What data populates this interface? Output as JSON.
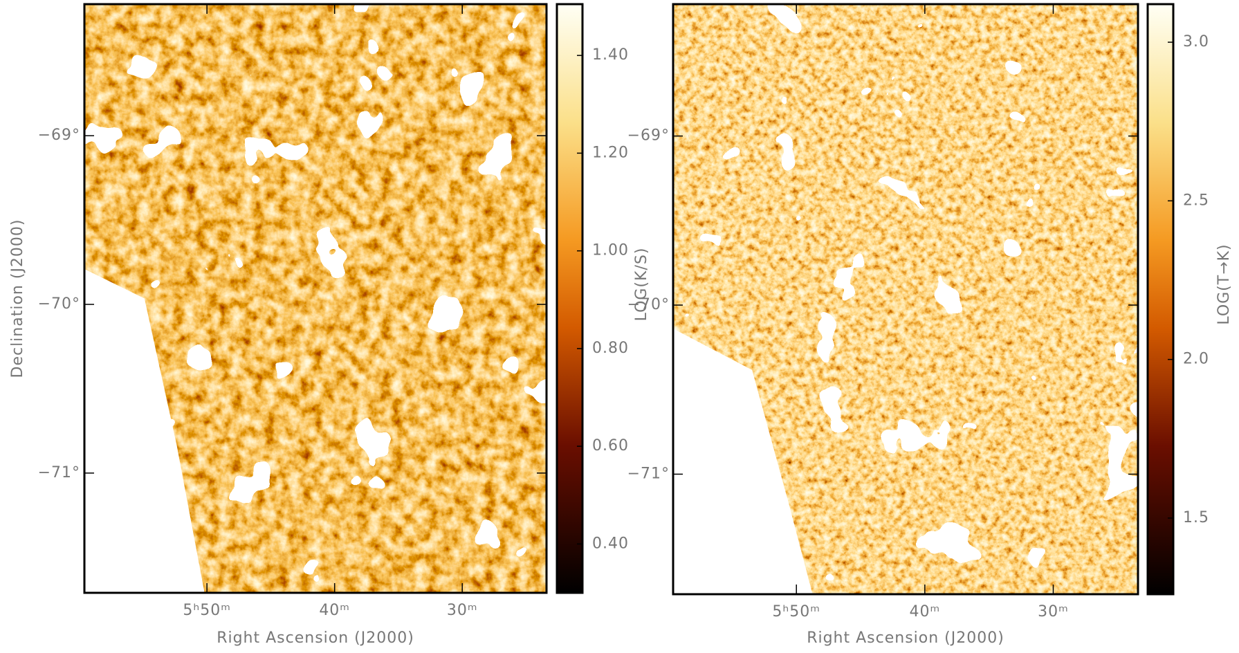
{
  "chart_data": [
    {
      "type": "image",
      "colormap": "afmhot",
      "xlabel": "Right Ascension (J2000)",
      "ylabel": "Declination (J2000)",
      "colorbar_label": "LOG(K/S)",
      "xlim": [
        359.6,
        323.4
      ],
      "ylim": [
        -71.71,
        -68.22
      ],
      "xticks": [
        {
          "value": 350,
          "label": "5ʰ50ᵐ"
        },
        {
          "value": 340,
          "label": "40ᵐ"
        },
        {
          "value": 330,
          "label": "30ᵐ"
        }
      ],
      "yticks": [
        {
          "value": -69,
          "label": "−69°"
        },
        {
          "value": -70,
          "label": "−70°"
        },
        {
          "value": -71,
          "label": "−71°"
        }
      ],
      "zlim": [
        0.3,
        1.505
      ],
      "zticks": [
        {
          "value": 0.4,
          "label": "0.40"
        },
        {
          "value": 0.6,
          "label": "0.60"
        },
        {
          "value": 0.8,
          "label": "0.80"
        },
        {
          "value": 1.0,
          "label": "1.00"
        },
        {
          "value": 1.2,
          "label": "1.20"
        },
        {
          "value": 1.4,
          "label": "1.40"
        }
      ]
    },
    {
      "type": "image",
      "colormap": "afmhot",
      "xlabel": "Right Ascension (J2000)",
      "colorbar_label": "LOG(T→K)",
      "xlim": [
        359.6,
        323.4
      ],
      "ylim": [
        -71.71,
        -68.22
      ],
      "xticks": [
        {
          "value": 350,
          "label": "5ʰ50ᵐ"
        },
        {
          "value": 340,
          "label": "40ᵐ"
        },
        {
          "value": 330,
          "label": "30ᵐ"
        }
      ],
      "yticks": [
        {
          "value": -69,
          "label": "−69°"
        },
        {
          "value": -70,
          "label": "−70°"
        },
        {
          "value": -71,
          "label": "−71°"
        }
      ],
      "zlim": [
        1.26,
        3.12
      ],
      "zticks": [
        {
          "value": 1.5,
          "label": "1.5"
        },
        {
          "value": 2.0,
          "label": "2.0"
        },
        {
          "value": 2.5,
          "label": "2.5"
        },
        {
          "value": 3.0,
          "label": "3.0"
        }
      ]
    }
  ]
}
